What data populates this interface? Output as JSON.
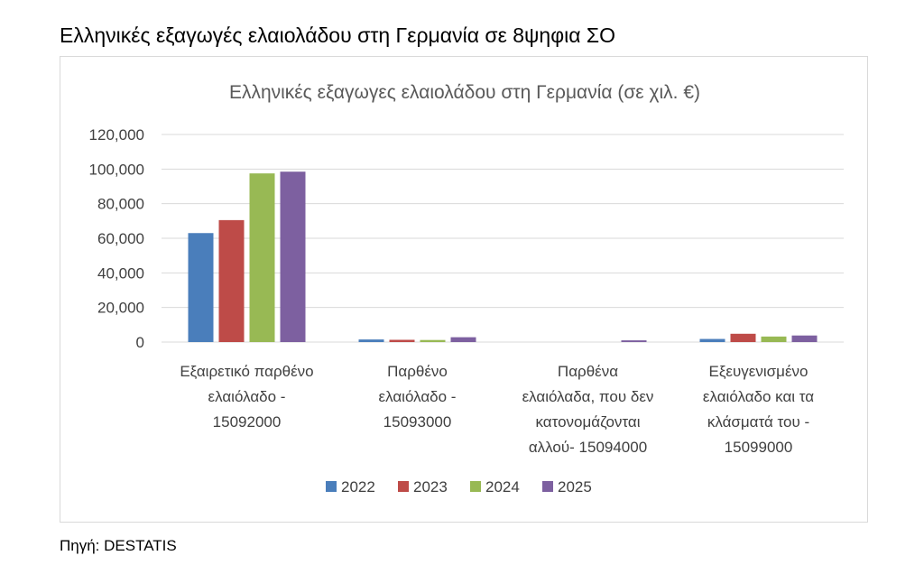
{
  "document": {
    "title": "Ελληνικές εξαγωγές ελαιολάδου στη Γερμανία σε 8ψηφια ΣΟ",
    "source": "Πηγή: DESTATIS"
  },
  "chart_data": {
    "type": "bar",
    "title": "Ελληνικές εξαγωγες ελαιολάδου στη Γερμανία (σε χιλ. €)",
    "xlabel": "",
    "ylabel": "",
    "ylim": [
      0,
      120000
    ],
    "yticks": [
      0,
      20000,
      40000,
      60000,
      80000,
      100000,
      120000
    ],
    "ytick_labels": [
      "0",
      "20,000",
      "40,000",
      "60,000",
      "80,000",
      "100,000",
      "120,000"
    ],
    "grid": true,
    "legend_position": "bottom",
    "categories": [
      [
        "Εξαιρετικό παρθένο",
        "ελαιόλαδο -",
        "15092000"
      ],
      [
        "Παρθένο",
        "ελαιόλαδο -",
        "15093000"
      ],
      [
        "Παρθένα",
        "ελαιόλαδα, που δεν",
        "κατονομάζονται",
        "αλλού- 15094000"
      ],
      [
        "Εξευγενισμένο",
        "ελαιόλαδο και τα",
        "κλάσματά του -",
        "15099000"
      ]
    ],
    "series": [
      {
        "name": "2022",
        "color": "#4a7ebb",
        "values": [
          63000,
          1500,
          0,
          1800
        ]
      },
      {
        "name": "2023",
        "color": "#be4b48",
        "values": [
          70500,
          1300,
          0,
          4800
        ]
      },
      {
        "name": "2024",
        "color": "#98b954",
        "values": [
          97500,
          1200,
          0,
          3200
        ]
      },
      {
        "name": "2025",
        "color": "#7d60a0",
        "values": [
          98500,
          2800,
          1000,
          3800
        ]
      }
    ]
  }
}
